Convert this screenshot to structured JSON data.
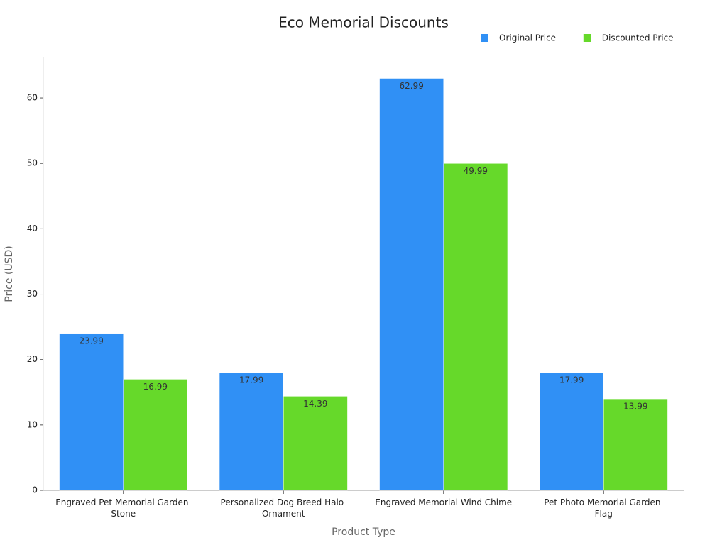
{
  "chart_data": {
    "type": "bar",
    "title": "Eco Memorial Discounts",
    "xlabel": "Product Type",
    "ylabel": "Price (USD)",
    "categories": [
      "Engraved Pet Memorial Garden Stone",
      "Personalized Dog Breed Halo Ornament",
      "Engraved Memorial Wind Chime",
      "Pet Photo Memorial Garden Flag"
    ],
    "series": [
      {
        "name": "Original Price",
        "color": "#3090f5",
        "values": [
          23.99,
          17.99,
          62.99,
          17.99
        ]
      },
      {
        "name": "Discounted Price",
        "color": "#66d92a",
        "values": [
          16.99,
          14.39,
          49.99,
          13.99
        ]
      }
    ],
    "ylim": [
      0,
      66.3
    ],
    "yticks": [
      0,
      10,
      20,
      30,
      40,
      50,
      60
    ],
    "legend": "top-right"
  }
}
